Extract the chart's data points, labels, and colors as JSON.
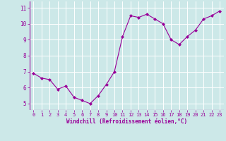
{
  "x": [
    0,
    1,
    2,
    3,
    4,
    5,
    6,
    7,
    8,
    9,
    10,
    11,
    12,
    13,
    14,
    15,
    16,
    17,
    18,
    19,
    20,
    21,
    22,
    23
  ],
  "y": [
    6.9,
    6.6,
    6.5,
    5.9,
    6.1,
    5.4,
    5.2,
    5.0,
    5.5,
    6.2,
    7.0,
    9.2,
    10.5,
    10.4,
    10.6,
    10.3,
    10.0,
    9.0,
    8.7,
    9.2,
    9.6,
    10.3,
    10.5,
    10.8
  ],
  "line_color": "#990099",
  "marker": "D",
  "marker_size": 2.0,
  "bg_color": "#cce8e8",
  "grid_color": "#ffffff",
  "xlabel": "Windchill (Refroidissement éolien,°C)",
  "xlabel_color": "#990099",
  "tick_color": "#990099",
  "yticks": [
    5,
    6,
    7,
    8,
    9,
    10,
    11
  ],
  "xticks": [
    0,
    1,
    2,
    3,
    4,
    5,
    6,
    7,
    8,
    9,
    10,
    11,
    12,
    13,
    14,
    15,
    16,
    17,
    18,
    19,
    20,
    21,
    22,
    23
  ],
  "ylim": [
    4.6,
    11.4
  ],
  "xlim": [
    -0.5,
    23.5
  ]
}
